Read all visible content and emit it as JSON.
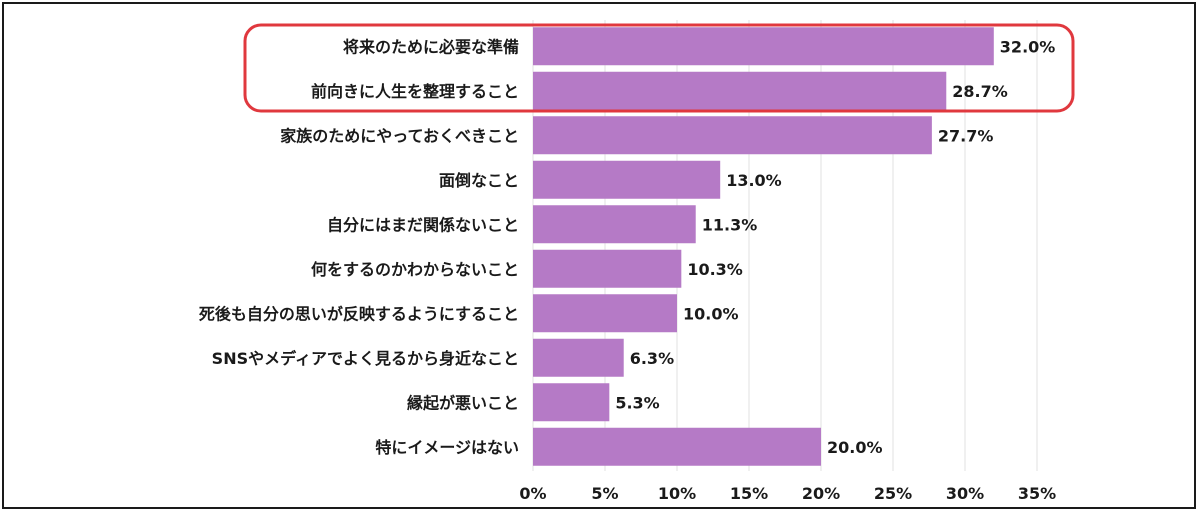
{
  "chart_data": {
    "type": "bar",
    "orientation": "horizontal",
    "categories": [
      "将来のために必要な準備",
      "前向きに人生を整理すること",
      "家族のためにやっておくべきこと",
      "面倒なこと",
      "自分にはまだ関係ないこと",
      "何をするのかわからないこと",
      "死後も自分の思いが反映するようにすること",
      "SNSやメディアでよく見るから身近なこと",
      "縁起が悪いこと",
      "特にイメージはない"
    ],
    "values": [
      32.0,
      28.7,
      27.7,
      13.0,
      11.3,
      10.3,
      10.0,
      6.3,
      5.3,
      20.0
    ],
    "value_labels": [
      "32.0%",
      "28.7%",
      "27.7%",
      "13.0%",
      "11.3%",
      "10.3%",
      "10.0%",
      "6.3%",
      "5.3%",
      "20.0%"
    ],
    "x_ticks": [
      0,
      5,
      10,
      15,
      20,
      25,
      30,
      35
    ],
    "x_tick_labels": [
      "0%",
      "5%",
      "10%",
      "15%",
      "20%",
      "25%",
      "30%",
      "35%"
    ],
    "xlim": [
      0,
      35
    ],
    "title": "",
    "xlabel": "",
    "ylabel": "",
    "grid": true,
    "legend": "none",
    "highlight": {
      "categories": [
        0,
        1
      ],
      "style": "red-rounded-outline"
    },
    "colors": {
      "bar": "#b57ac6",
      "grid": "#e2e2e2",
      "highlight": "#e0383e",
      "text": "#1a1a1a"
    }
  }
}
